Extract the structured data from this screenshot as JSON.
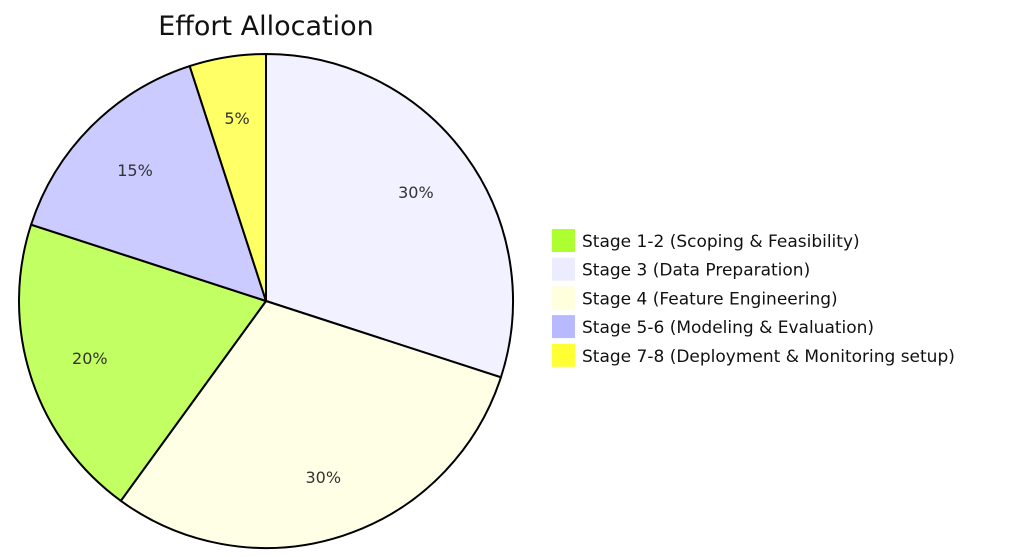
{
  "chart_data": {
    "type": "pie",
    "title": "Effort Allocation",
    "slices": [
      {
        "label": "Stage 3 (Data Preparation)",
        "value": 30,
        "data_label": "30%",
        "color": "#ECECFF"
      },
      {
        "label": "Stage 4 (Feature Engineering)",
        "value": 30,
        "data_label": "30%",
        "color": "#FFFFDE"
      },
      {
        "label": "Stage 1-2 (Scoping & Feasibility)",
        "value": 20,
        "data_label": "20%",
        "color": "#ADFF2F"
      },
      {
        "label": "Stage 5-6 (Modeling & Evaluation)",
        "value": 15,
        "data_label": "15%",
        "color": "#B9B9FF"
      },
      {
        "label": "Stage 7-8 (Deployment & Monitoring setup)",
        "value": 5,
        "data_label": "5%",
        "color": "#FFFF33"
      }
    ],
    "legend": [
      {
        "label": "Stage 1-2 (Scoping & Feasibility)",
        "color": "#ADFF2F"
      },
      {
        "label": "Stage 3 (Data Preparation)",
        "color": "#ECECFF"
      },
      {
        "label": "Stage 4 (Feature Engineering)",
        "color": "#FFFFDE"
      },
      {
        "label": "Stage 5-6 (Modeling & Evaluation)",
        "color": "#B9B9FF"
      },
      {
        "label": "Stage 7-8 (Deployment & Monitoring setup)",
        "color": "#FFFF33"
      }
    ],
    "legend_position": "right"
  }
}
